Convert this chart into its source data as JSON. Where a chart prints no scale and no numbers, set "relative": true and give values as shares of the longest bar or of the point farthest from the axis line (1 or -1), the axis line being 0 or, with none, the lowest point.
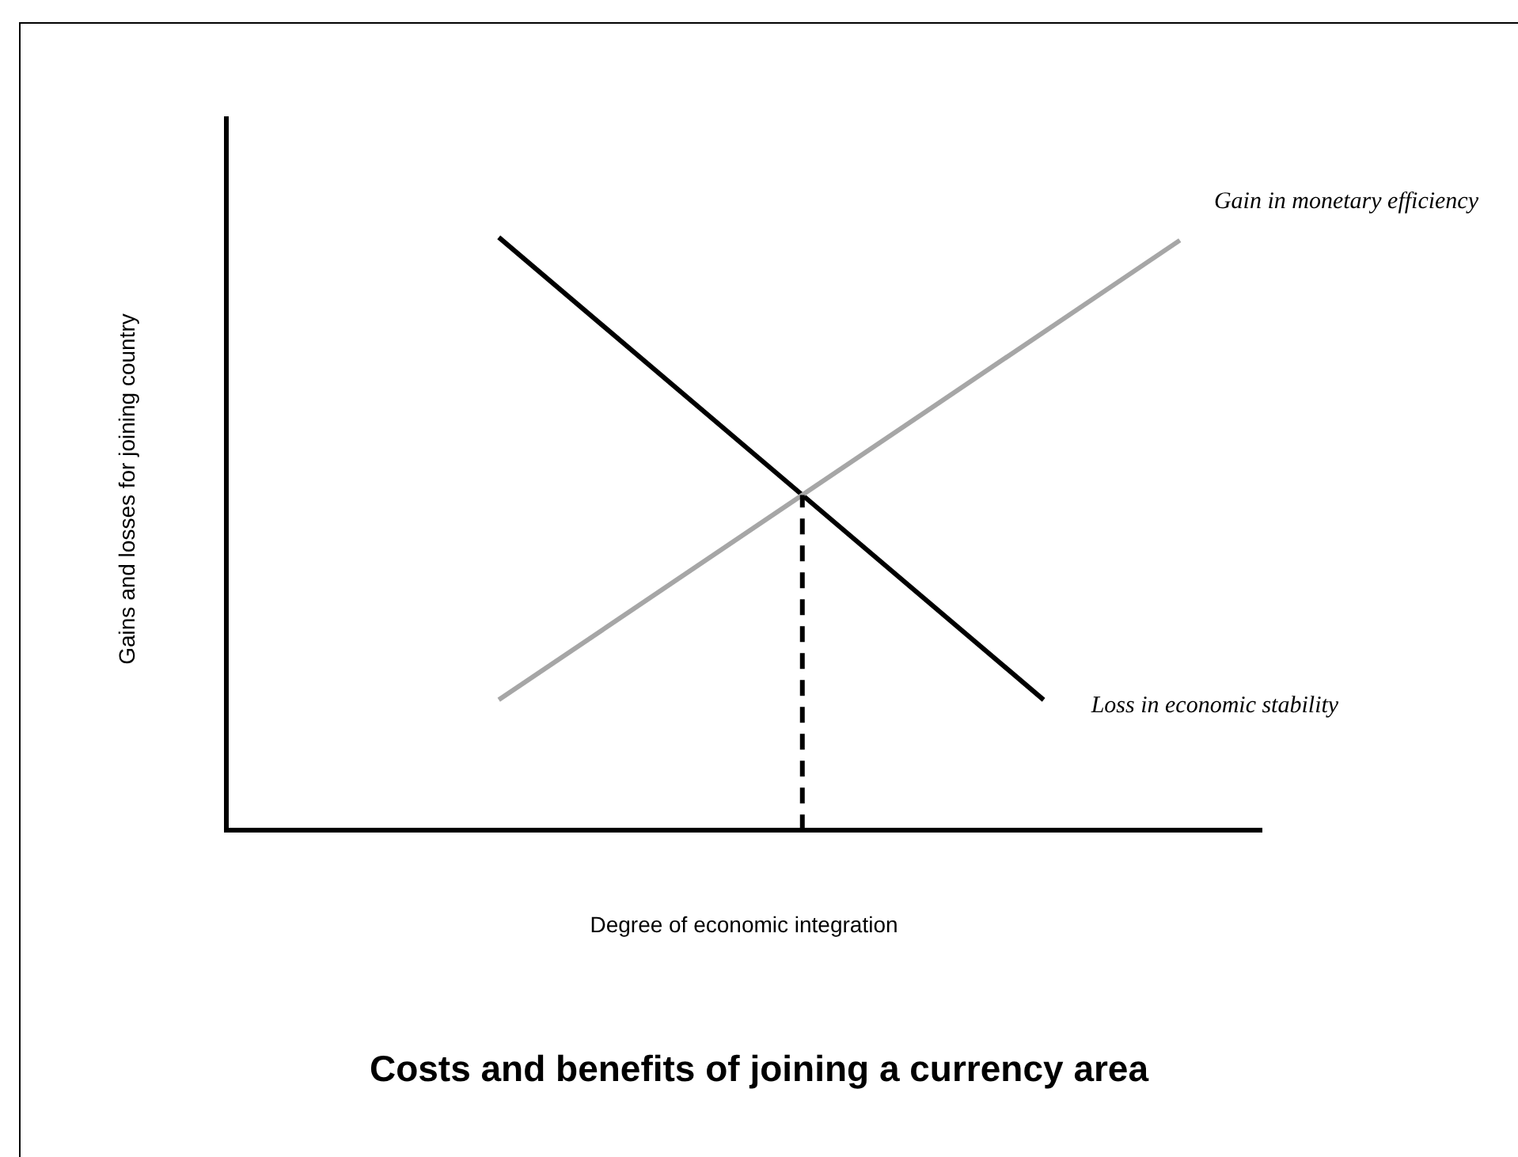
{
  "chart_data": {
    "type": "line",
    "relative": true,
    "title": "Costs and benefits of joining a currency area",
    "xlabel": "Degree of economic integration",
    "ylabel": "Gains and losses for joining country",
    "grid": false,
    "legend": false,
    "marker": "none",
    "categories": [
      null,
      null,
      null,
      null,
      null,
      null,
      null,
      null,
      null,
      null,
      null,
      null,
      null,
      null,
      null,
      null,
      null,
      null,
      null,
      null,
      null,
      null,
      null,
      null,
      null,
      null,
      null,
      null,
      null,
      null,
      null,
      null,
      null,
      null,
      null,
      null,
      null,
      null,
      null
    ],
    "series": [
      {
        "name": "Gain in monetary efficiency",
        "color": "#a6a6a6",
        "values": [
          null,
          null,
          null,
          null,
          null,
          null,
          null,
          null,
          null,
          null,
          0.22,
          null,
          null,
          null,
          null,
          null,
          null,
          null,
          null,
          null,
          null,
          null,
          null,
          null,
          null,
          null,
          null,
          null,
          null,
          null,
          null,
          null,
          null,
          null,
          null,
          0.995,
          null,
          null,
          null
        ]
      },
      {
        "name": "Loss in economic stability",
        "color": "#000000",
        "values": [
          null,
          null,
          null,
          null,
          null,
          null,
          null,
          null,
          null,
          null,
          1,
          null,
          null,
          null,
          null,
          null,
          null,
          null,
          null,
          null,
          null,
          null,
          null,
          null,
          null,
          null,
          null,
          null,
          null,
          null,
          0.22,
          null,
          null,
          null,
          null,
          null,
          null,
          null,
          null
        ]
      }
    ]
  }
}
